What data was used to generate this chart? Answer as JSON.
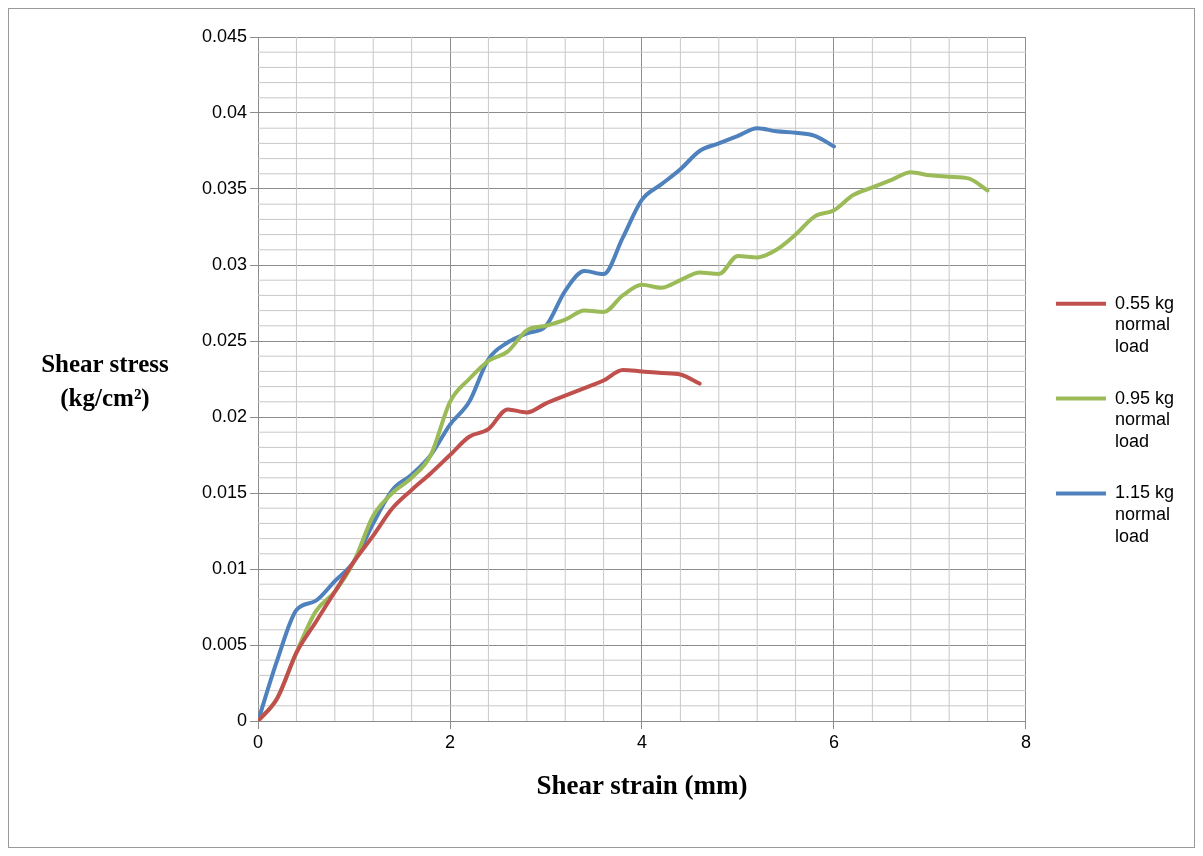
{
  "chart_data": {
    "type": "line",
    "xlabel": "Shear strain (mm)",
    "ylabel": "Shear stress (kg/cm²)",
    "xlim": [
      0,
      8
    ],
    "xticks": [
      0,
      2,
      4,
      6,
      8
    ],
    "ylim": [
      0,
      0.045
    ],
    "yticks": [
      0,
      0.005,
      0.01,
      0.015,
      0.02,
      0.025,
      0.03,
      0.035,
      0.04,
      0.045
    ],
    "grid": true,
    "legend": "right",
    "marker": "none",
    "line_style": "solid",
    "series": [
      {
        "name": "0.55 kg normal load",
        "color": "#c0504d",
        "x": [
          0,
          0.2,
          0.4,
          0.6,
          0.8,
          1,
          1.2,
          1.4,
          1.6,
          1.8,
          2,
          2.2,
          2.4,
          2.6,
          2.8,
          3,
          3.2,
          3.4,
          3.6,
          3.8,
          4,
          4.2,
          4.4,
          4.6
        ],
        "values": [
          0,
          0.0015,
          0.0045,
          0.0065,
          0.0085,
          0.0105,
          0.0122,
          0.014,
          0.0152,
          0.0163,
          0.0175,
          0.0187,
          0.0192,
          0.0205,
          0.0203,
          0.0209,
          0.0214,
          0.0219,
          0.0224,
          0.0231,
          0.023,
          0.0229,
          0.0228,
          0.0222
        ]
      },
      {
        "name": "0.95 kg normal load",
        "color": "#9bbb59",
        "x": [
          0,
          0.2,
          0.4,
          0.6,
          0.8,
          1,
          1.2,
          1.4,
          1.6,
          1.8,
          2,
          2.2,
          2.4,
          2.6,
          2.8,
          3,
          3.2,
          3.4,
          3.6,
          3.8,
          4,
          4.2,
          4.4,
          4.6,
          4.8,
          5,
          5.2,
          5.4,
          5.6,
          5.8,
          6,
          6.2,
          6.4,
          6.6,
          6.8,
          7,
          7.2,
          7.4,
          7.6
        ],
        "values": [
          0,
          0.0015,
          0.0045,
          0.0072,
          0.0085,
          0.0105,
          0.0135,
          0.015,
          0.016,
          0.0175,
          0.021,
          0.0225,
          0.0237,
          0.0243,
          0.0257,
          0.026,
          0.0264,
          0.027,
          0.0269,
          0.028,
          0.0287,
          0.0285,
          0.029,
          0.0295,
          0.0294,
          0.0306,
          0.0305,
          0.031,
          0.032,
          0.0332,
          0.0336,
          0.0346,
          0.0351,
          0.0356,
          0.0361,
          0.0359,
          0.0358,
          0.0357,
          0.0349
        ]
      },
      {
        "name": "1.15 kg normal load",
        "color": "#4f81bd",
        "x": [
          0,
          0.2,
          0.4,
          0.6,
          0.8,
          1,
          1.2,
          1.4,
          1.6,
          1.8,
          2,
          2.2,
          2.4,
          2.6,
          2.8,
          3,
          3.2,
          3.4,
          3.6,
          3.8,
          4,
          4.2,
          4.4,
          4.6,
          4.8,
          5,
          5.2,
          5.4,
          5.6,
          5.8,
          6
        ],
        "values": [
          0,
          0.004,
          0.0073,
          0.0079,
          0.0092,
          0.0105,
          0.013,
          0.0152,
          0.0162,
          0.0175,
          0.0195,
          0.021,
          0.0238,
          0.0249,
          0.0255,
          0.026,
          0.0283,
          0.0296,
          0.0294,
          0.0318,
          0.0343,
          0.0353,
          0.0363,
          0.0375,
          0.038,
          0.0385,
          0.039,
          0.0388,
          0.0387,
          0.0385,
          0.0378
        ]
      }
    ]
  }
}
